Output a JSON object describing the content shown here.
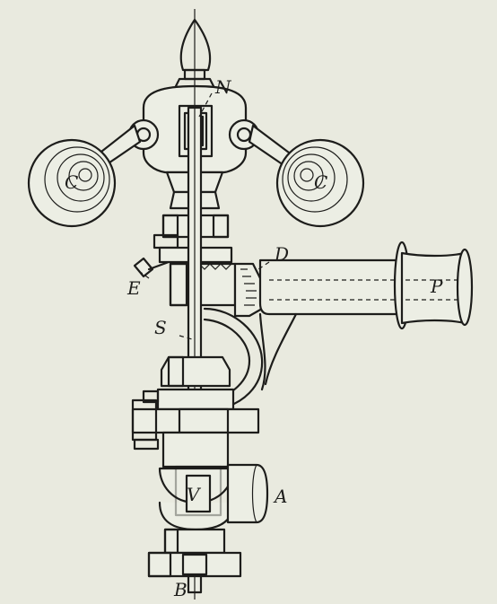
{
  "labels": {
    "n": "N",
    "c_left": "C",
    "c_right": "C",
    "d": "D",
    "e": "E",
    "p": "P",
    "s": "S",
    "v": "V",
    "a": "A",
    "b": "B"
  },
  "colors": {
    "background": "#e9eadf",
    "ink": "#1d1d1b"
  }
}
